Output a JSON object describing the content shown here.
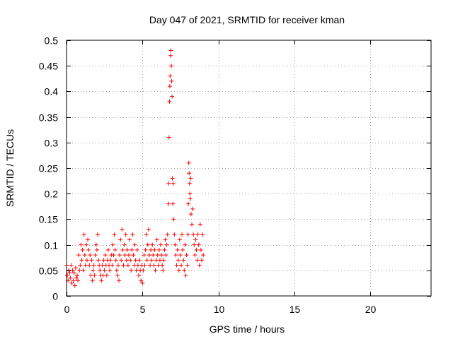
{
  "chart_data": {
    "type": "scatter",
    "title": "Day 047 of 2021, SRMTID for receiver kman",
    "xlabel": "GPS time / hours",
    "ylabel": "SRMTID / TECUs",
    "xlim": [
      0,
      24
    ],
    "ylim": [
      0,
      0.5
    ],
    "xticks": [
      0,
      5,
      10,
      15,
      20
    ],
    "xtick_labels": [
      "0",
      "5",
      "10",
      "15",
      "20"
    ],
    "yticks": [
      0,
      0.05,
      0.1,
      0.15,
      0.2,
      0.25,
      0.3,
      0.35,
      0.4,
      0.45,
      0.5
    ],
    "ytick_labels": [
      "0",
      "0.05",
      "0.1",
      "0.15",
      "0.2",
      "0.25",
      "0.3",
      "0.35",
      "0.4",
      "0.45",
      "0.5"
    ],
    "grid": true,
    "marker": "+",
    "color": "#ff0000",
    "series": [
      {
        "name": "SRMTID",
        "points": [
          [
            0.0,
            0.06
          ],
          [
            0.05,
            0.04
          ],
          [
            0.1,
            0.03
          ],
          [
            0.15,
            0.05
          ],
          [
            0.2,
            0.045
          ],
          [
            0.25,
            0.035
          ],
          [
            0.3,
            0.06
          ],
          [
            0.35,
            0.025
          ],
          [
            0.4,
            0.05
          ],
          [
            0.45,
            0.03
          ],
          [
            0.5,
            0.045
          ],
          [
            0.55,
            0.02
          ],
          [
            0.6,
            0.055
          ],
          [
            0.65,
            0.035
          ],
          [
            0.7,
            0.04
          ],
          [
            0.75,
            0.03
          ],
          [
            0.8,
            0.08
          ],
          [
            0.85,
            0.05
          ],
          [
            0.9,
            0.06
          ],
          [
            0.95,
            0.1
          ],
          [
            1.0,
            0.07
          ],
          [
            1.05,
            0.09
          ],
          [
            1.1,
            0.05
          ],
          [
            1.15,
            0.12
          ],
          [
            1.2,
            0.08
          ],
          [
            1.25,
            0.06
          ],
          [
            1.3,
            0.1
          ],
          [
            1.35,
            0.07
          ],
          [
            1.4,
            0.11
          ],
          [
            1.45,
            0.09
          ],
          [
            1.5,
            0.06
          ],
          [
            1.55,
            0.08
          ],
          [
            1.6,
            0.04
          ],
          [
            1.65,
            0.07
          ],
          [
            1.7,
            0.03
          ],
          [
            1.75,
            0.05
          ],
          [
            1.8,
            0.06
          ],
          [
            1.85,
            0.04
          ],
          [
            1.9,
            0.08
          ],
          [
            1.95,
            0.1
          ],
          [
            2.0,
            0.09
          ],
          [
            2.05,
            0.12
          ],
          [
            2.1,
            0.07
          ],
          [
            2.15,
            0.06
          ],
          [
            2.2,
            0.05
          ],
          [
            2.25,
            0.04
          ],
          [
            2.3,
            0.03
          ],
          [
            2.35,
            0.06
          ],
          [
            2.4,
            0.04
          ],
          [
            2.45,
            0.07
          ],
          [
            2.5,
            0.05
          ],
          [
            2.55,
            0.08
          ],
          [
            2.6,
            0.06
          ],
          [
            2.65,
            0.04
          ],
          [
            2.7,
            0.07
          ],
          [
            2.75,
            0.09
          ],
          [
            2.8,
            0.06
          ],
          [
            2.85,
            0.05
          ],
          [
            2.9,
            0.07
          ],
          [
            2.95,
            0.08
          ],
          [
            3.0,
            0.06
          ],
          [
            3.05,
            0.1
          ],
          [
            3.1,
            0.08
          ],
          [
            3.15,
            0.12
          ],
          [
            3.2,
            0.09
          ],
          [
            3.25,
            0.07
          ],
          [
            3.3,
            0.05
          ],
          [
            3.35,
            0.04
          ],
          [
            3.4,
            0.06
          ],
          [
            3.45,
            0.03
          ],
          [
            3.5,
            0.08
          ],
          [
            3.55,
            0.11
          ],
          [
            3.6,
            0.07
          ],
          [
            3.65,
            0.13
          ],
          [
            3.7,
            0.09
          ],
          [
            3.75,
            0.06
          ],
          [
            3.8,
            0.1
          ],
          [
            3.85,
            0.08
          ],
          [
            3.9,
            0.12
          ],
          [
            3.95,
            0.07
          ],
          [
            4.0,
            0.09
          ],
          [
            4.05,
            0.06
          ],
          [
            4.1,
            0.08
          ],
          [
            4.15,
            0.11
          ],
          [
            4.2,
            0.07
          ],
          [
            4.25,
            0.05
          ],
          [
            4.3,
            0.09
          ],
          [
            4.35,
            0.12
          ],
          [
            4.4,
            0.08
          ],
          [
            4.45,
            0.06
          ],
          [
            4.5,
            0.1
          ],
          [
            4.55,
            0.07
          ],
          [
            4.6,
            0.05
          ],
          [
            4.65,
            0.09
          ],
          [
            4.7,
            0.06
          ],
          [
            4.75,
            0.04
          ],
          [
            4.8,
            0.07
          ],
          [
            4.85,
            0.05
          ],
          [
            4.9,
            0.03
          ],
          [
            4.95,
            0.06
          ],
          [
            5.0,
            0.025
          ],
          [
            5.05,
            0.05
          ],
          [
            5.1,
            0.08
          ],
          [
            5.15,
            0.06
          ],
          [
            5.2,
            0.09
          ],
          [
            5.25,
            0.12
          ],
          [
            5.3,
            0.07
          ],
          [
            5.35,
            0.1
          ],
          [
            5.4,
            0.13
          ],
          [
            5.45,
            0.08
          ],
          [
            5.5,
            0.06
          ],
          [
            5.55,
            0.09
          ],
          [
            5.6,
            0.07
          ],
          [
            5.65,
            0.1
          ],
          [
            5.7,
            0.08
          ],
          [
            5.75,
            0.06
          ],
          [
            5.8,
            0.09
          ],
          [
            5.85,
            0.05
          ],
          [
            5.9,
            0.07
          ],
          [
            5.95,
            0.11
          ],
          [
            6.0,
            0.08
          ],
          [
            6.05,
            0.06
          ],
          [
            6.1,
            0.09
          ],
          [
            6.15,
            0.07
          ],
          [
            6.2,
            0.1
          ],
          [
            6.25,
            0.08
          ],
          [
            6.3,
            0.06
          ],
          [
            6.35,
            0.05
          ],
          [
            6.4,
            0.07
          ],
          [
            6.45,
            0.09
          ],
          [
            6.5,
            0.11
          ],
          [
            6.55,
            0.08
          ],
          [
            6.6,
            0.1
          ],
          [
            6.65,
            0.12
          ],
          [
            6.7,
            0.18
          ],
          [
            6.72,
            0.22
          ],
          [
            6.75,
            0.31
          ],
          [
            6.78,
            0.38
          ],
          [
            6.8,
            0.41
          ],
          [
            6.82,
            0.43
          ],
          [
            6.85,
            0.47
          ],
          [
            6.87,
            0.48
          ],
          [
            6.9,
            0.45
          ],
          [
            6.92,
            0.42
          ],
          [
            6.95,
            0.39
          ],
          [
            6.97,
            0.23
          ],
          [
            7.0,
            0.18
          ],
          [
            7.02,
            0.22
          ],
          [
            7.05,
            0.15
          ],
          [
            7.1,
            0.12
          ],
          [
            7.15,
            0.1
          ],
          [
            7.2,
            0.08
          ],
          [
            7.25,
            0.06
          ],
          [
            7.3,
            0.09
          ],
          [
            7.35,
            0.07
          ],
          [
            7.4,
            0.05
          ],
          [
            7.45,
            0.11
          ],
          [
            7.5,
            0.08
          ],
          [
            7.55,
            0.06
          ],
          [
            7.6,
            0.12
          ],
          [
            7.65,
            0.09
          ],
          [
            7.7,
            0.07
          ],
          [
            7.75,
            0.05
          ],
          [
            7.8,
            0.1
          ],
          [
            7.85,
            0.04
          ],
          [
            7.9,
            0.08
          ],
          [
            7.95,
            0.06
          ],
          [
            8.0,
            0.12
          ],
          [
            8.02,
            0.18
          ],
          [
            8.05,
            0.26
          ],
          [
            8.07,
            0.24
          ],
          [
            8.1,
            0.22
          ],
          [
            8.12,
            0.2
          ],
          [
            8.15,
            0.19
          ],
          [
            8.18,
            0.23
          ],
          [
            8.2,
            0.16
          ],
          [
            8.25,
            0.14
          ],
          [
            8.3,
            0.17
          ],
          [
            8.35,
            0.12
          ],
          [
            8.4,
            0.1
          ],
          [
            8.45,
            0.08
          ],
          [
            8.5,
            0.11
          ],
          [
            8.55,
            0.09
          ],
          [
            8.6,
            0.07
          ],
          [
            8.65,
            0.12
          ],
          [
            8.7,
            0.1
          ],
          [
            8.75,
            0.06
          ],
          [
            8.8,
            0.14
          ],
          [
            8.85,
            0.09
          ],
          [
            8.9,
            0.07
          ],
          [
            8.95,
            0.12
          ],
          [
            9.0,
            0.08
          ]
        ]
      }
    ]
  }
}
